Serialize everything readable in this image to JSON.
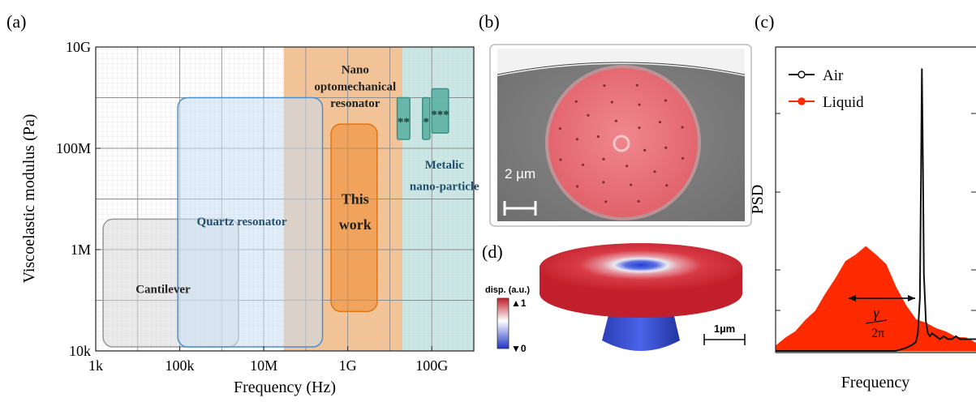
{
  "panels": {
    "a": "(a)",
    "b": "(b)",
    "c": "(c)",
    "d": "(d)"
  },
  "chart_data": [
    {
      "type": "area",
      "panel": "(a)",
      "xlabel": "Frequency (Hz)",
      "ylabel": "Viscoelastic modulus (Pa)",
      "xscale": "log",
      "yscale": "log",
      "xlim": [
        1000,
        1000000000000.0
      ],
      "ylim": [
        10000,
        10000000000.0
      ],
      "grid": true,
      "xticks": [
        {
          "value": 1000,
          "label": "1k"
        },
        {
          "value": 100000,
          "label": "100k"
        },
        {
          "value": 10000000,
          "label": "10M"
        },
        {
          "value": 1000000000,
          "label": "1G"
        },
        {
          "value": 100000000000,
          "label": "100G"
        }
      ],
      "yticks": [
        {
          "value": 10000,
          "label": "10k"
        },
        {
          "value": 1000000,
          "label": "1M"
        },
        {
          "value": 100000000,
          "label": "100M"
        },
        {
          "value": 10000000000,
          "label": "10G"
        }
      ],
      "bands": [
        {
          "x": [
            30000000,
            20000000000
          ],
          "color": "#f6b77e"
        },
        {
          "x": [
            20000000000,
            1000000000000.0
          ],
          "color": "#bfe3df"
        }
      ],
      "regions": [
        {
          "name": "Cantilever",
          "x": [
            1500,
            2500000
          ],
          "y": [
            12000,
            4000000
          ],
          "fill": "#d9d9d9",
          "stroke": "#9a9a9a"
        },
        {
          "name": "Quartz resonator",
          "x": [
            90000,
            250000000
          ],
          "y": [
            12000,
            1000000000
          ],
          "fill": "#c9def3",
          "stroke": "#4a8fce"
        },
        {
          "name": "This work",
          "x": [
            400000000,
            5000000000
          ],
          "y": [
            60000,
            300000000
          ],
          "fill": "#f08a2c",
          "stroke": "#e07515"
        },
        {
          "name": "**",
          "x": [
            15000000000,
            30000000000
          ],
          "y": [
            150000000,
            1000000000
          ],
          "fill": "#63b4a8",
          "stroke": "#3d8f83"
        },
        {
          "name": "*",
          "x": [
            60000000000,
            90000000000
          ],
          "y": [
            150000000,
            1000000000
          ],
          "fill": "#63b4a8",
          "stroke": "#3d8f83"
        },
        {
          "name": "***",
          "x": [
            100000000000,
            250000000000
          ],
          "y": [
            200000000,
            1500000000
          ],
          "fill": "#63b4a8",
          "stroke": "#3d8f83"
        }
      ],
      "annotations": [
        {
          "text": "Nano",
          "x": 1500000000,
          "y": 3000000000
        },
        {
          "text": "optomechanical",
          "x": 1500000000,
          "y": 1400000000
        },
        {
          "text": "resonator",
          "x": 1500000000,
          "y": 650000000
        },
        {
          "text": "Metalic",
          "x": 200000000000,
          "y": 40000000
        },
        {
          "text": "nano-particle",
          "x": 200000000000,
          "y": 15000000
        },
        {
          "text": "Quartz resonator",
          "x": 3000000,
          "y": 3000000
        },
        {
          "text": "This",
          "x": 1500000000,
          "y": 8000000
        },
        {
          "text": "work",
          "x": 1500000000,
          "y": 2500000
        },
        {
          "text": "Cantilever",
          "x": 40000,
          "y": 140000
        }
      ]
    },
    {
      "type": "line",
      "panel": "(c)",
      "xlabel": "Frequency",
      "ylabel": "PSD",
      "legend": "top-left",
      "xlim": [
        0,
        100
      ],
      "ylim": [
        0,
        100
      ],
      "series": [
        {
          "name": "Air",
          "color": "#111111",
          "x": [
            0,
            20,
            40,
            60,
            65,
            68,
            70,
            71,
            72,
            72.5,
            73,
            73.5,
            74,
            75,
            76,
            77,
            78,
            80,
            82,
            84,
            86,
            88,
            90,
            92,
            95,
            100
          ],
          "y": [
            0,
            0,
            0,
            0,
            1,
            2,
            3,
            6,
            18,
            55,
            96,
            65,
            26,
            10,
            6,
            5,
            6,
            5,
            4,
            5,
            4,
            4,
            5,
            4,
            4,
            4
          ]
        },
        {
          "name": "Liquid",
          "color": "#ff2a00",
          "x": [
            0,
            5,
            10,
            15,
            20,
            25,
            30,
            35,
            40,
            45,
            50,
            55,
            60,
            65,
            70,
            75,
            80,
            85,
            90,
            95,
            100
          ],
          "y": [
            2,
            4,
            7,
            10,
            14,
            19,
            25,
            30,
            33,
            35,
            33,
            29,
            22,
            15,
            11,
            9,
            8,
            6,
            5,
            4,
            3
          ]
        }
      ],
      "annotations": [
        {
          "text": "γ",
          "x": 48,
          "y": 14
        },
        {
          "text": "2π",
          "x": 48,
          "y": 5
        }
      ]
    }
  ],
  "panel_b": {
    "scale_label": "2 µm"
  },
  "panel_d": {
    "colorbar_title": "disp. (a.u.)",
    "colorbar_max": "▲1",
    "colorbar_min": "▼0",
    "scale_label": "1µm"
  }
}
